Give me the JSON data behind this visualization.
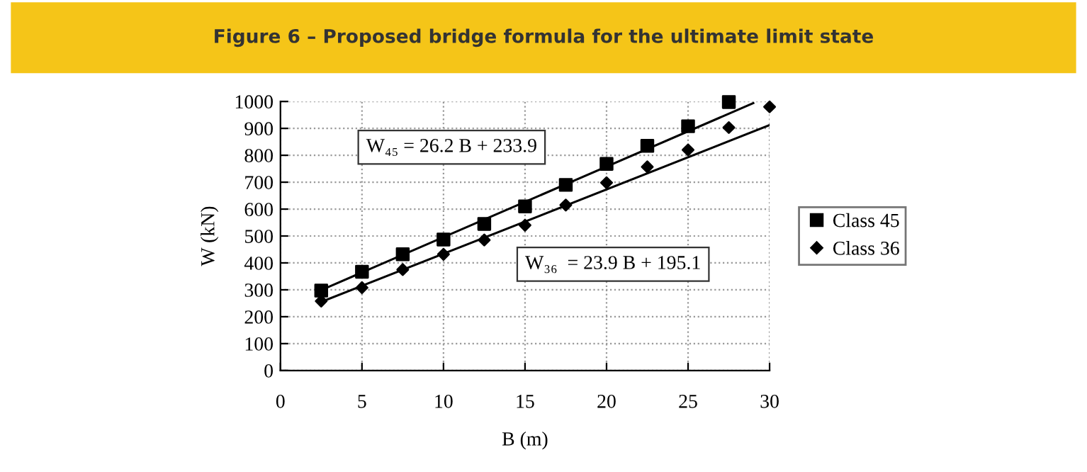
{
  "chart_data": {
    "type": "scatter",
    "title": "Figure 6 – Proposed bridge formula for the ultimate limit state",
    "xlabel": "B (m)",
    "ylabel": "W (kN)",
    "xlim": [
      0,
      30
    ],
    "xticks": [
      0,
      5,
      10,
      15,
      20,
      25,
      30
    ],
    "ylim": [
      0,
      1000
    ],
    "yticks": [
      0,
      100,
      200,
      300,
      400,
      500,
      600,
      700,
      800,
      900,
      1000
    ],
    "grid": true,
    "legend": "right",
    "series": [
      {
        "name": "Class 45",
        "marker": "square",
        "color": "#000000",
        "x": [
          2.5,
          5,
          7.5,
          10,
          12.5,
          15,
          17.5,
          20,
          22.5,
          25,
          27.5
        ],
        "values": [
          297,
          367,
          432,
          487,
          545,
          610,
          690,
          768,
          835,
          908,
          998
        ]
      },
      {
        "name": "Class 36",
        "marker": "diamond",
        "color": "#000000",
        "x": [
          2.5,
          5,
          7.5,
          10,
          12.5,
          15,
          17.5,
          20,
          22.5,
          25,
          27.5,
          30
        ],
        "values": [
          258,
          308,
          375,
          432,
          485,
          540,
          615,
          698,
          757,
          820,
          903,
          980
        ]
      },
      {
        "type": "line",
        "color": "#000000",
        "x": [
          2.5,
          29
        ],
        "values": [
          299,
          994
        ]
      },
      {
        "type": "line",
        "color": "#000000",
        "x": [
          2.5,
          30
        ],
        "values": [
          255,
          912
        ]
      }
    ],
    "annotations": [
      "W₄₅ = 26.2 B + 233.9",
      "W₃₆  = 23.9 B + 195.1"
    ]
  }
}
